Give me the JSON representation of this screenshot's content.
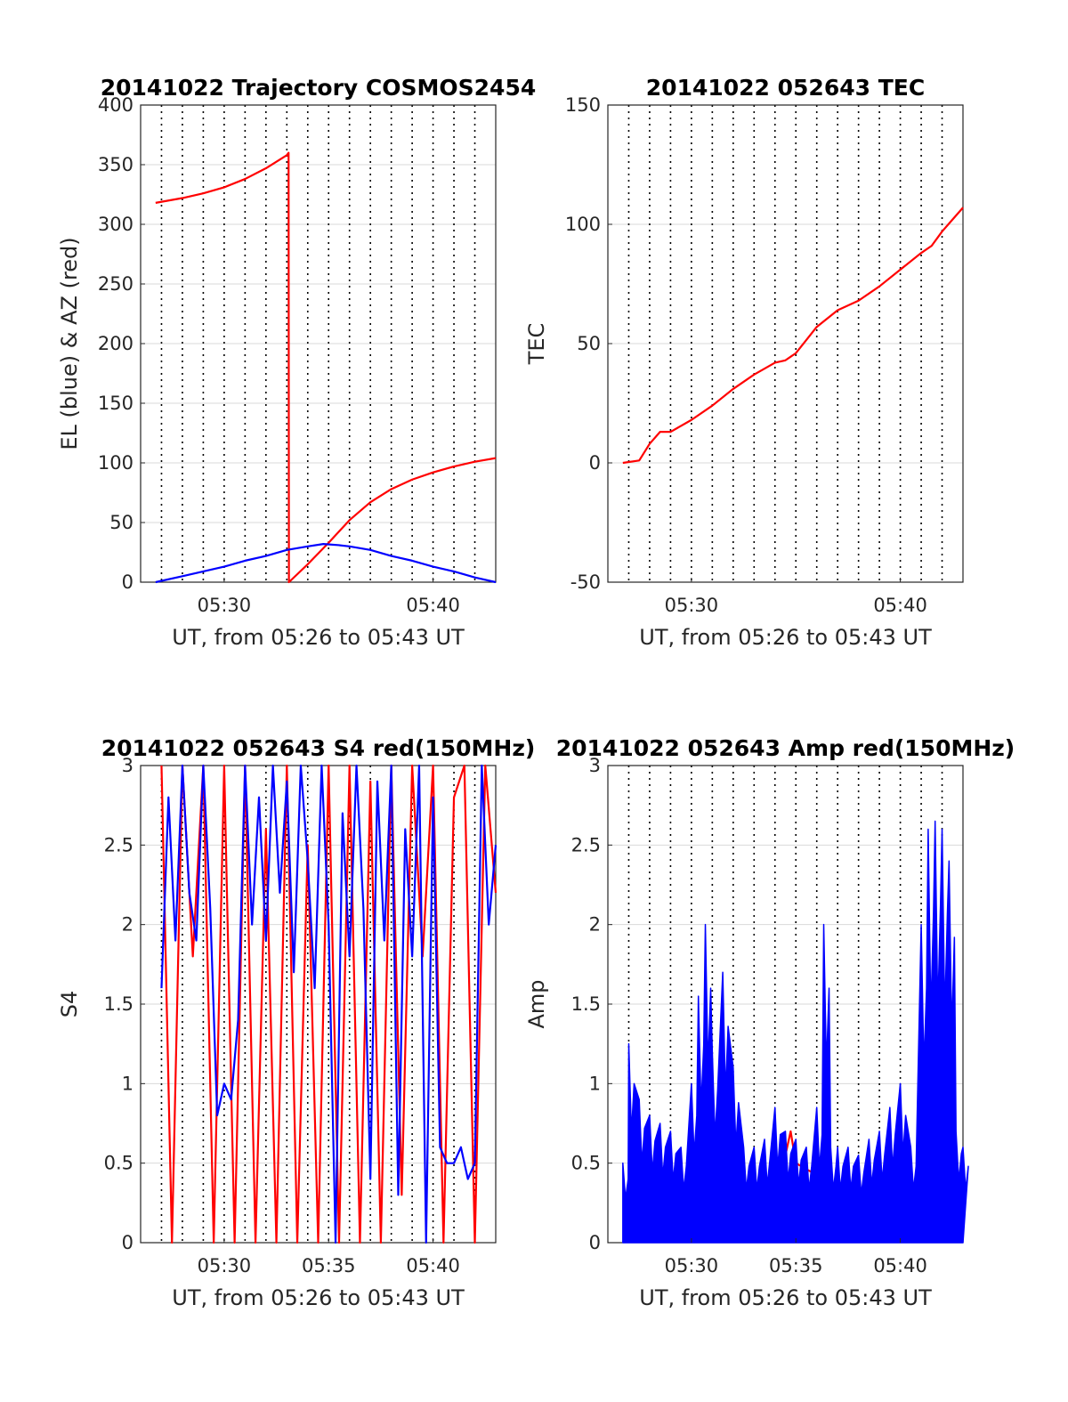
{
  "colors": {
    "red": "#ff0000",
    "blue": "#0000ff",
    "grid": "#d9d9d9",
    "axis": "#262626"
  },
  "chart_data": [
    {
      "type": "line",
      "title": "20141022 Trajectory COSMOS2454",
      "xlabel": "UT, from 05:26 to 05:43 UT",
      "ylabel": "EL (blue) & AZ (red)",
      "xlim": [
        "05:26",
        "05:43"
      ],
      "ylim": [
        0,
        400
      ],
      "yticks": [
        "0",
        "50",
        "100",
        "150",
        "200",
        "250",
        "300",
        "350",
        "400"
      ],
      "xticks": [
        "05:30",
        "05:40"
      ],
      "grid": true,
      "series": [
        {
          "color": "red",
          "x": [
            "05:26:43",
            "05:28:00",
            "05:29:00",
            "05:30:00",
            "05:31:00",
            "05:32:00",
            "05:33:00",
            "05:33:05",
            "05:33:06",
            "05:34:00",
            "05:35:00",
            "05:36:00",
            "05:37:00",
            "05:38:00",
            "05:39:00",
            "05:40:00",
            "05:41:00",
            "05:42:00",
            "05:43:00"
          ],
          "y": [
            318,
            322,
            326,
            331,
            338,
            347,
            358,
            360,
            0,
            15,
            33,
            52,
            67,
            78,
            86,
            92,
            97,
            101,
            104
          ]
        },
        {
          "color": "blue",
          "x": [
            "05:26:43",
            "05:28:00",
            "05:29:00",
            "05:30:00",
            "05:31:00",
            "05:32:00",
            "05:33:00",
            "05:34:00",
            "05:34:45",
            "05:35:30",
            "05:36:00",
            "05:37:00",
            "05:38:00",
            "05:39:00",
            "05:40:00",
            "05:41:00",
            "05:42:00",
            "05:43:00"
          ],
          "y": [
            0,
            5,
            9,
            13,
            18,
            22,
            27,
            30,
            32,
            31,
            30,
            27,
            22,
            18,
            13,
            9,
            4,
            0
          ]
        }
      ]
    },
    {
      "type": "line",
      "title": "20141022 052643 TEC",
      "xlabel": "UT, from 05:26 to 05:43 UT",
      "ylabel": "TEC",
      "xlim": [
        "05:26",
        "05:43"
      ],
      "ylim": [
        -50,
        150
      ],
      "yticks": [
        "-50",
        "0",
        "50",
        "100",
        "150"
      ],
      "xticks": [
        "05:30",
        "05:40"
      ],
      "grid": true,
      "series": [
        {
          "color": "red",
          "x": [
            "05:26:43",
            "05:27:30",
            "05:28:00",
            "05:28:30",
            "05:29:00",
            "05:30:00",
            "05:31:00",
            "05:32:00",
            "05:33:00",
            "05:34:00",
            "05:34:30",
            "05:35:00",
            "05:36:00",
            "05:37:00",
            "05:38:00",
            "05:39:00",
            "05:40:00",
            "05:41:00",
            "05:41:30",
            "05:42:00",
            "05:42:30",
            "05:43:00"
          ],
          "y": [
            0,
            1,
            8,
            13,
            13,
            18,
            24,
            31,
            37,
            42,
            43,
            46,
            57,
            64,
            68,
            74,
            81,
            88,
            91,
            97,
            102,
            107
          ]
        }
      ]
    },
    {
      "type": "line",
      "title": "20141022 052643 S4 red(150MHz)",
      "xlabel": "UT, from 05:26 to 05:43 UT",
      "ylabel": "S4",
      "xlim": [
        "05:26",
        "05:43"
      ],
      "ylim": [
        0,
        3
      ],
      "yticks": [
        "0",
        "0.5",
        "1",
        "1.5",
        "2",
        "2.5",
        "3"
      ],
      "xticks": [
        "05:30",
        "05:35",
        "05:40"
      ],
      "grid": true,
      "series": [
        {
          "color": "red",
          "x": [
            "05:27:00",
            "05:27:30",
            "05:28:00",
            "05:28:30",
            "05:29:00",
            "05:29:30",
            "05:30:00",
            "05:30:30",
            "05:31:00",
            "05:31:30",
            "05:32:00",
            "05:32:30",
            "05:33:00",
            "05:33:30",
            "05:34:00",
            "05:34:30",
            "05:35:00",
            "05:35:30",
            "05:36:00",
            "05:36:30",
            "05:37:00",
            "05:37:30",
            "05:38:00",
            "05:38:30",
            "05:39:00",
            "05:39:30",
            "05:40:00",
            "05:40:30",
            "05:41:00",
            "05:41:30",
            "05:42:00",
            "05:42:30",
            "05:43:00"
          ],
          "y": [
            3.0,
            0.0,
            3.0,
            1.8,
            3.0,
            0.0,
            3.0,
            0.0,
            3.0,
            0.0,
            2.6,
            0.0,
            3.0,
            0.0,
            2.5,
            0.0,
            3.0,
            0.0,
            3.0,
            0.0,
            2.9,
            0.0,
            3.0,
            0.3,
            3.0,
            1.8,
            3.0,
            0.0,
            2.8,
            3.0,
            0.0,
            3.0,
            2.2
          ]
        },
        {
          "color": "blue",
          "x": [
            "05:27:00",
            "05:27:20",
            "05:27:40",
            "05:28:00",
            "05:28:20",
            "05:28:40",
            "05:29:00",
            "05:29:20",
            "05:29:40",
            "05:30:00",
            "05:30:20",
            "05:30:40",
            "05:31:00",
            "05:31:20",
            "05:31:40",
            "05:32:00",
            "05:32:20",
            "05:32:40",
            "05:33:00",
            "05:33:20",
            "05:33:40",
            "05:34:00",
            "05:34:20",
            "05:34:40",
            "05:35:00",
            "05:35:20",
            "05:35:40",
            "05:36:00",
            "05:36:20",
            "05:36:40",
            "05:37:00",
            "05:37:20",
            "05:37:40",
            "05:38:00",
            "05:38:20",
            "05:38:40",
            "05:39:00",
            "05:39:20",
            "05:39:40",
            "05:40:00",
            "05:40:20",
            "05:40:40",
            "05:41:00",
            "05:41:20",
            "05:41:40",
            "05:42:00",
            "05:42:20",
            "05:42:40",
            "05:43:00"
          ],
          "y": [
            1.6,
            2.8,
            1.9,
            3.0,
            2.2,
            1.9,
            3.0,
            2.1,
            0.8,
            1.0,
            0.9,
            1.4,
            3.0,
            2.0,
            2.8,
            1.9,
            3.0,
            2.2,
            2.9,
            1.7,
            3.0,
            2.4,
            1.6,
            3.0,
            2.0,
            0.0,
            2.7,
            1.8,
            3.0,
            2.1,
            0.4,
            2.9,
            1.9,
            3.0,
            0.3,
            2.6,
            1.8,
            3.0,
            0.0,
            2.8,
            0.6,
            0.5,
            0.5,
            0.6,
            0.4,
            0.5,
            3.0,
            2.0,
            2.5
          ]
        }
      ]
    },
    {
      "type": "line",
      "title": "20141022 052643 Amp red(150MHz)",
      "xlabel": "UT, from 05:26 to 05:43 UT",
      "ylabel": "Amp",
      "xlim": [
        "05:26",
        "05:43"
      ],
      "ylim": [
        0,
        3
      ],
      "yticks": [
        "0",
        "0.5",
        "1",
        "1.5",
        "2",
        "2.5",
        "3"
      ],
      "xticks": [
        "05:30",
        "05:35",
        "05:40"
      ],
      "grid": true,
      "series": [
        {
          "color": "red",
          "x": [
            "05:34:30",
            "05:34:45",
            "05:35:00",
            "05:41:00",
            "05:41:30",
            "05:42:00",
            "05:42:30"
          ],
          "y": [
            0.55,
            0.7,
            0.5,
            0.05,
            0.1,
            0.08,
            0.05
          ]
        },
        {
          "color": "blue",
          "envelope": "min 0 to max y",
          "x": [
            "05:26:43",
            "05:27:00",
            "05:27:30",
            "05:28:00",
            "05:28:30",
            "05:29:00",
            "05:29:30",
            "05:30:00",
            "05:30:20",
            "05:30:40",
            "05:31:00",
            "05:31:30",
            "05:32:00",
            "05:32:30",
            "05:33:00",
            "05:33:30",
            "05:34:00",
            "05:34:30",
            "05:35:00",
            "05:35:30",
            "05:36:00",
            "05:36:20",
            "05:36:40",
            "05:37:00",
            "05:37:30",
            "05:38:00",
            "05:38:30",
            "05:39:00",
            "05:39:30",
            "05:40:00",
            "05:40:30",
            "05:41:00",
            "05:41:20",
            "05:41:40",
            "05:42:00",
            "05:42:20",
            "05:42:40",
            "05:43:00"
          ],
          "y": [
            0.5,
            1.25,
            0.9,
            0.8,
            0.75,
            0.7,
            0.6,
            1.0,
            1.55,
            2.0,
            1.2,
            1.7,
            1.1,
            0.6,
            0.6,
            0.65,
            0.85,
            0.7,
            0.65,
            0.6,
            0.85,
            2.0,
            0.6,
            0.6,
            0.6,
            0.55,
            0.65,
            0.7,
            0.85,
            1.0,
            0.6,
            2.0,
            2.6,
            2.65,
            2.6,
            2.4,
            0.7,
            0.6
          ]
        }
      ]
    }
  ]
}
